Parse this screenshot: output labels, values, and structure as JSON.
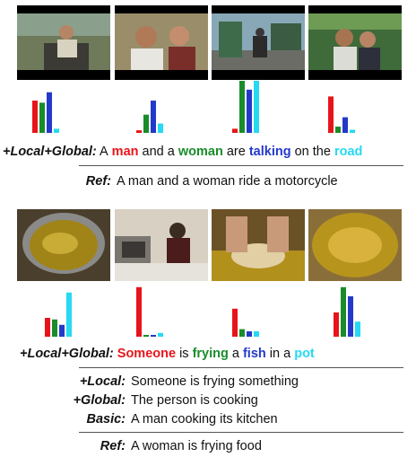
{
  "colors": {
    "red": "#e8141b",
    "green": "#1a8c2a",
    "blue": "#2439c9",
    "cyan": "#27d9f2"
  },
  "example1": {
    "frames": [
      {
        "icon": "video-frame-man-on-motorcycle"
      },
      {
        "icon": "video-frame-man-and-woman"
      },
      {
        "icon": "video-frame-motorcycle-on-road"
      },
      {
        "icon": "video-frame-man-and-woman-outdoors"
      }
    ],
    "bar_groups": [
      {
        "values": [
          0.62,
          0.58,
          0.78,
          0.08
        ]
      },
      {
        "values": [
          0.05,
          0.35,
          0.62,
          0.18
        ]
      },
      {
        "values": [
          0.08,
          1.0,
          0.83,
          1.0
        ]
      },
      {
        "values": [
          0.7,
          0.12,
          0.3,
          0.06
        ]
      }
    ],
    "caption_label": "+Local+Global:",
    "caption_words": [
      {
        "text": "A",
        "color": ""
      },
      {
        "text": "man",
        "color": "red"
      },
      {
        "text": "and a",
        "color": ""
      },
      {
        "text": "woman",
        "color": "green"
      },
      {
        "text": "are",
        "color": ""
      },
      {
        "text": "talking",
        "color": "blue"
      },
      {
        "text": "on the",
        "color": ""
      },
      {
        "text": "road",
        "color": "cyan"
      }
    ],
    "ref_label": "Ref:",
    "ref_text": "A man and a woman ride a motorcycle"
  },
  "example2": {
    "frames": [
      {
        "icon": "video-frame-oil-in-pot"
      },
      {
        "icon": "video-frame-woman-in-kitchen"
      },
      {
        "icon": "video-frame-hands-frying-fish"
      },
      {
        "icon": "video-frame-fried-food-in-pot"
      }
    ],
    "bar_groups": [
      {
        "values": [
          0.35,
          0.32,
          0.22,
          0.82
        ]
      },
      {
        "values": [
          0.92,
          0.03,
          0.03,
          0.07
        ]
      },
      {
        "values": [
          0.52,
          0.14,
          0.1,
          0.1
        ]
      },
      {
        "values": [
          0.45,
          0.92,
          0.75,
          0.28
        ]
      }
    ],
    "caption_label": "+Local+Global:",
    "caption_words": [
      {
        "text": "Someone",
        "color": "red"
      },
      {
        "text": "is",
        "color": ""
      },
      {
        "text": "frying",
        "color": "green"
      },
      {
        "text": "a",
        "color": ""
      },
      {
        "text": "fish",
        "color": "blue"
      },
      {
        "text": "in a",
        "color": ""
      },
      {
        "text": "pot",
        "color": "cyan"
      }
    ],
    "results": [
      {
        "label": "+Local:",
        "text": "Someone is frying something"
      },
      {
        "label": "+Global:",
        "text": "The person is cooking"
      },
      {
        "label": "Basic:",
        "text": "A man cooking its kitchen"
      }
    ],
    "ref_label": "Ref:",
    "ref_text": "A woman is frying food"
  }
}
